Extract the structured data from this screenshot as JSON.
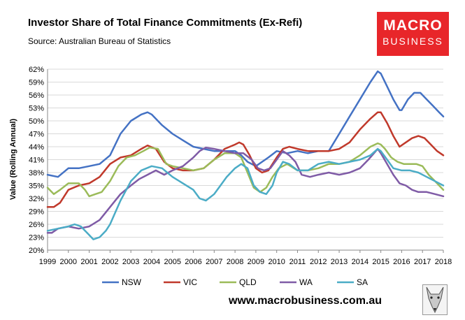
{
  "header": {
    "title": "Investor Share of Total Finance Commitments (Ex-Refi)",
    "source": "Source: Australian Bureau of Statistics"
  },
  "logo": {
    "line1": "MACRO",
    "line2": "BUSINESS"
  },
  "footer": {
    "website": "www.macrobusiness.com.au"
  },
  "colors": {
    "NSW": "#4472c4",
    "VIC": "#c0392b",
    "QLD": "#9bbb59",
    "WA": "#7f5ba6",
    "SA": "#4bacc6"
  },
  "chart_data": {
    "type": "line",
    "title": "Investor Share of Total Finance Commitments (Ex-Refi)",
    "ylabel": "Value (Rolling Annual)",
    "xlabel": "",
    "ylim": [
      20,
      62
    ],
    "xlim": [
      1999,
      2018
    ],
    "yticks": [
      "20%",
      "23%",
      "26%",
      "29%",
      "32%",
      "35%",
      "38%",
      "41%",
      "44%",
      "47%",
      "50%",
      "53%",
      "56%",
      "59%",
      "62%"
    ],
    "xticks": [
      "1999",
      "2000",
      "2001",
      "2002",
      "2003",
      "2004",
      "2005",
      "2006",
      "2007",
      "2008",
      "2009",
      "2010",
      "2011",
      "2012",
      "2013",
      "2014",
      "2015",
      "2016",
      "2017",
      "2018"
    ],
    "grid": true,
    "legend": "bottom",
    "series": [
      {
        "name": "NSW",
        "x": [
          1999,
          1999.5,
          2000,
          2000.5,
          2001,
          2001.5,
          2002,
          2002.5,
          2003,
          2003.5,
          2003.8,
          2004,
          2004.5,
          2005,
          2005.5,
          2006,
          2006.5,
          2007,
          2007.5,
          2008,
          2008.3,
          2008.6,
          2009,
          2009.3,
          2009.6,
          2010,
          2010.5,
          2011,
          2011.5,
          2012,
          2012.5,
          2013,
          2013.5,
          2014,
          2014.5,
          2014.85,
          2015,
          2015.3,
          2015.6,
          2015.9,
          2016,
          2016.3,
          2016.6,
          2016.9,
          2017.2,
          2017.5,
          2017.8,
          2018
        ],
        "values": [
          37.5,
          37,
          39,
          39,
          39.5,
          40,
          42,
          47,
          50,
          51.5,
          52,
          51.5,
          49,
          47,
          45.5,
          44,
          43.5,
          43,
          43,
          43,
          42,
          40.5,
          39.5,
          40.5,
          41.5,
          43,
          42.5,
          43,
          42.5,
          43,
          43,
          47,
          51,
          55,
          59,
          61.5,
          61,
          58,
          55,
          52.5,
          52.5,
          55,
          56.5,
          56.5,
          55,
          53.5,
          52,
          51
        ]
      },
      {
        "name": "VIC",
        "x": [
          1999,
          1999.3,
          1999.6,
          2000,
          2000.5,
          2001,
          2001.5,
          2002,
          2002.5,
          2003,
          2003.5,
          2003.8,
          2004.2,
          2004.6,
          2005,
          2005.5,
          2006,
          2006.5,
          2007,
          2007.5,
          2008,
          2008.2,
          2008.4,
          2008.7,
          2009,
          2009.3,
          2009.6,
          2010,
          2010.3,
          2010.6,
          2011,
          2011.5,
          2012,
          2012.5,
          2013,
          2013.5,
          2014,
          2014.5,
          2014.85,
          2015,
          2015.3,
          2015.6,
          2015.9,
          2016.2,
          2016.5,
          2016.8,
          2017.1,
          2017.4,
          2017.7,
          2018
        ],
        "values": [
          30,
          30,
          31,
          34,
          35,
          35.5,
          37,
          40,
          41.5,
          42,
          43.5,
          44.3,
          43.5,
          40.5,
          39,
          38.5,
          38.5,
          39,
          41,
          43.5,
          44.5,
          45,
          44.5,
          42,
          39,
          38,
          38.5,
          41.5,
          43.5,
          44,
          43.5,
          43,
          43,
          43,
          43.5,
          45,
          48,
          50.5,
          52,
          52,
          49.5,
          46.5,
          44,
          45,
          46,
          46.5,
          46,
          44.5,
          43,
          42
        ]
      },
      {
        "name": "QLD",
        "x": [
          1999,
          1999.3,
          1999.6,
          2000,
          2000.5,
          2000.8,
          2001,
          2001.3,
          2001.6,
          2002,
          2002.4,
          2002.8,
          2003.2,
          2003.6,
          2003.9,
          2004.3,
          2004.7,
          2005,
          2005.5,
          2006,
          2006.5,
          2007,
          2007.5,
          2008,
          2008.3,
          2008.6,
          2008.9,
          2009.2,
          2009.5,
          2009.8,
          2010.1,
          2010.5,
          2011,
          2011.5,
          2012,
          2012.5,
          2013,
          2013.5,
          2014,
          2014.5,
          2014.85,
          2015,
          2015.2,
          2015.5,
          2015.8,
          2016.1,
          2016.4,
          2016.7,
          2017,
          2017.3,
          2017.6,
          2018
        ],
        "values": [
          34.5,
          33,
          34,
          35.5,
          35.5,
          34,
          32.5,
          33,
          33.5,
          36,
          39.5,
          41.5,
          42,
          43,
          43.8,
          43.5,
          40,
          39.5,
          39,
          38.5,
          39,
          41,
          42.5,
          42.5,
          41.5,
          38,
          34.5,
          33.5,
          34.5,
          37,
          39,
          40,
          38.5,
          38.5,
          39,
          40,
          40,
          40.5,
          42,
          44,
          44.8,
          44.5,
          43.5,
          41.5,
          40.5,
          40,
          40,
          40,
          39.5,
          37.5,
          36,
          34
        ]
      },
      {
        "name": "WA",
        "x": [
          1999,
          1999.2,
          1999.5,
          2000,
          2000.5,
          2001,
          2001.5,
          2002,
          2002.5,
          2003,
          2003.4,
          2003.8,
          2004.2,
          2004.6,
          2005,
          2005.5,
          2006,
          2006.3,
          2006.6,
          2007,
          2007.5,
          2008,
          2008.4,
          2008.8,
          2009.1,
          2009.4,
          2009.7,
          2010,
          2010.3,
          2010.6,
          2010.9,
          2011.2,
          2011.6,
          2012,
          2012.5,
          2013,
          2013.5,
          2014,
          2014.4,
          2014.85,
          2015,
          2015.3,
          2015.6,
          2015.9,
          2016.2,
          2016.5,
          2016.8,
          2017.2,
          2017.6,
          2018
        ],
        "values": [
          24,
          24,
          25,
          25.5,
          25,
          25.5,
          27,
          30,
          33,
          35,
          36.5,
          37.5,
          38.5,
          37.5,
          38.5,
          39.5,
          41.5,
          43,
          43.8,
          43.5,
          43,
          42.5,
          42.5,
          41,
          39,
          38.5,
          39,
          41,
          43,
          42,
          40.5,
          37.5,
          37,
          37.5,
          38,
          37.5,
          38,
          39,
          41,
          43.5,
          42.5,
          40,
          37.5,
          35.5,
          35,
          34,
          33.5,
          33.5,
          33,
          32.5
        ]
      },
      {
        "name": "SA",
        "x": [
          1999,
          1999.5,
          2000,
          2000.3,
          2000.6,
          2001,
          2001.2,
          2001.5,
          2001.8,
          2002,
          2002.5,
          2003,
          2003.5,
          2004,
          2004.5,
          2005,
          2005.5,
          2006,
          2006.3,
          2006.6,
          2007,
          2007.3,
          2007.6,
          2008,
          2008.3,
          2008.6,
          2008.9,
          2009.2,
          2009.5,
          2009.8,
          2010,
          2010.3,
          2010.6,
          2011,
          2011.5,
          2012,
          2012.5,
          2013,
          2013.5,
          2014,
          2014.5,
          2014.85,
          2015,
          2015.3,
          2015.6,
          2016,
          2016.4,
          2016.8,
          2017.2,
          2017.6,
          2018
        ],
        "values": [
          24.5,
          25,
          25.5,
          26,
          25.5,
          23.5,
          22.5,
          23,
          24.5,
          26,
          31.5,
          36,
          38.5,
          39.5,
          39,
          37,
          35.5,
          34,
          32,
          31.5,
          33,
          35,
          37,
          39,
          40,
          39,
          35,
          33.5,
          33,
          35,
          38,
          40.5,
          40,
          38.5,
          38.5,
          40,
          40.5,
          40,
          40.5,
          41,
          42,
          43.5,
          43,
          41,
          39,
          38.5,
          38.5,
          38,
          37,
          36,
          35
        ]
      }
    ]
  }
}
